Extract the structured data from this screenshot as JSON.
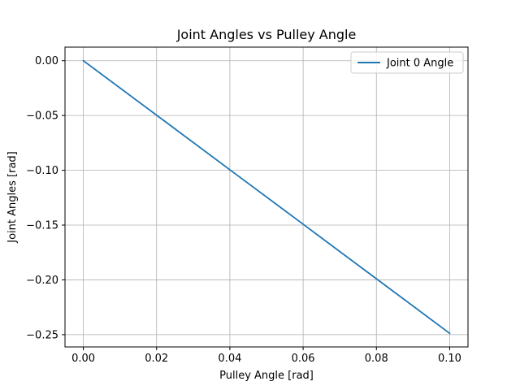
{
  "chart_data": {
    "type": "line",
    "title": "Joint Angles vs Pulley Angle",
    "xlabel": "Pulley Angle [rad]",
    "ylabel": "Joint Angles [rad]",
    "xlim": [
      -0.005,
      0.105
    ],
    "ylim": [
      -0.2612,
      0.0124
    ],
    "x_ticks": [
      0.0,
      0.02,
      0.04,
      0.06,
      0.08,
      0.1
    ],
    "x_tick_labels": [
      "0.00",
      "0.02",
      "0.04",
      "0.06",
      "0.08",
      "0.10"
    ],
    "y_ticks": [
      0.0,
      -0.05,
      -0.1,
      -0.15,
      -0.2,
      -0.25
    ],
    "y_tick_labels": [
      "0.00",
      "−0.05",
      "−0.10",
      "−0.15",
      "−0.20",
      "−0.25"
    ],
    "grid": true,
    "legend_position": "upper right",
    "series": [
      {
        "name": "Joint 0 Angle",
        "color": "#1f77b4",
        "x": [
          0.0,
          0.02,
          0.04,
          0.06,
          0.08,
          0.1
        ],
        "y": [
          0.0,
          -0.0497,
          -0.0995,
          -0.1492,
          -0.199,
          -0.2488
        ]
      }
    ]
  }
}
